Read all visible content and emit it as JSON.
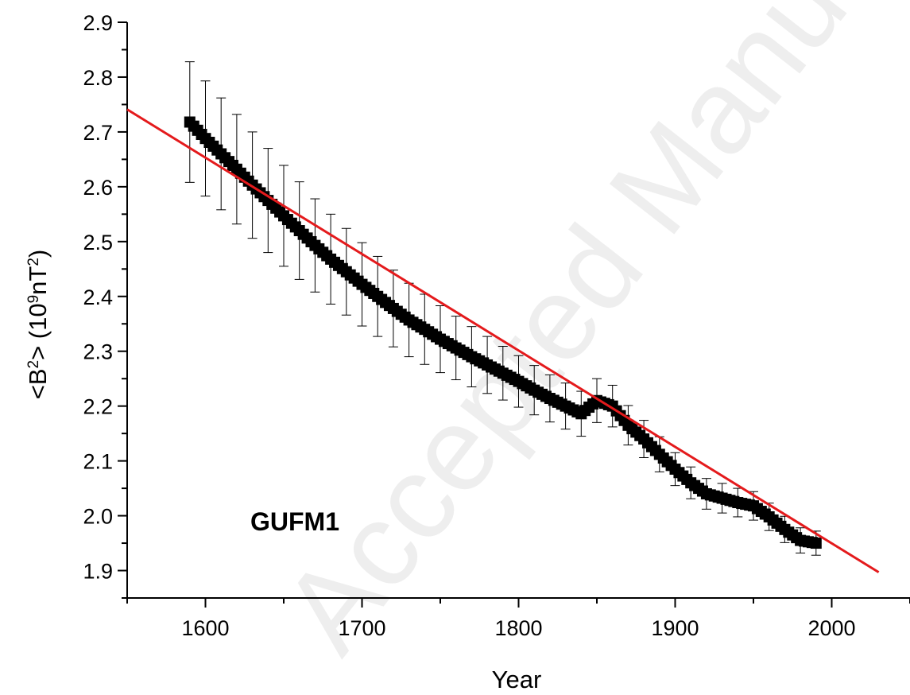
{
  "chart_data": {
    "type": "scatter",
    "title": "",
    "xlabel": "Year",
    "ylabel_parts": [
      "<B",
      "2",
      "> (10",
      "9",
      "nT",
      "2",
      ")"
    ],
    "xlim": [
      1550,
      2050
    ],
    "ylim": [
      1.85,
      2.9
    ],
    "x_ticks": [
      1600,
      1700,
      1800,
      1900,
      2000
    ],
    "x_tick_labels": [
      "1600",
      "1700",
      "1800",
      "1900",
      "2000"
    ],
    "y_ticks": [
      1.9,
      2.0,
      2.1,
      2.2,
      2.3,
      2.4,
      2.5,
      2.6,
      2.7,
      2.8,
      2.9
    ],
    "y_tick_labels": [
      "1.9",
      "2.0",
      "2.1",
      "2.2",
      "2.3",
      "2.4",
      "2.5",
      "2.6",
      "2.7",
      "2.8",
      "2.9"
    ],
    "grid": false,
    "annotation": "GUFM1",
    "watermark": "Accepted Manuscript",
    "marker_color": "#000000",
    "fit_color": "#e41a1c",
    "series": {
      "x": [
        1590,
        1600,
        1610,
        1620,
        1630,
        1640,
        1650,
        1660,
        1670,
        1680,
        1690,
        1700,
        1710,
        1720,
        1730,
        1740,
        1750,
        1760,
        1770,
        1780,
        1790,
        1800,
        1810,
        1820,
        1830,
        1840,
        1850,
        1860,
        1870,
        1880,
        1890,
        1900,
        1910,
        1920,
        1930,
        1940,
        1950,
        1960,
        1970,
        1980,
        1990
      ],
      "y": [
        2.718,
        2.688,
        2.66,
        2.632,
        2.603,
        2.575,
        2.547,
        2.52,
        2.493,
        2.468,
        2.445,
        2.422,
        2.4,
        2.378,
        2.357,
        2.34,
        2.322,
        2.306,
        2.29,
        2.275,
        2.26,
        2.245,
        2.229,
        2.214,
        2.2,
        2.186,
        2.21,
        2.2,
        2.165,
        2.14,
        2.112,
        2.085,
        2.06,
        2.04,
        2.032,
        2.024,
        2.018,
        1.998,
        1.975,
        1.955,
        1.95
      ],
      "err": [
        0.11,
        0.105,
        0.102,
        0.1,
        0.097,
        0.095,
        0.092,
        0.089,
        0.085,
        0.082,
        0.079,
        0.076,
        0.073,
        0.07,
        0.067,
        0.064,
        0.061,
        0.058,
        0.055,
        0.052,
        0.049,
        0.047,
        0.045,
        0.043,
        0.042,
        0.041,
        0.04,
        0.038,
        0.036,
        0.034,
        0.032,
        0.03,
        0.029,
        0.028,
        0.027,
        0.026,
        0.026,
        0.025,
        0.024,
        0.023,
        0.022
      ]
    },
    "fit": {
      "x": [
        1550,
        2030
      ],
      "y": [
        2.741,
        1.897
      ]
    }
  }
}
